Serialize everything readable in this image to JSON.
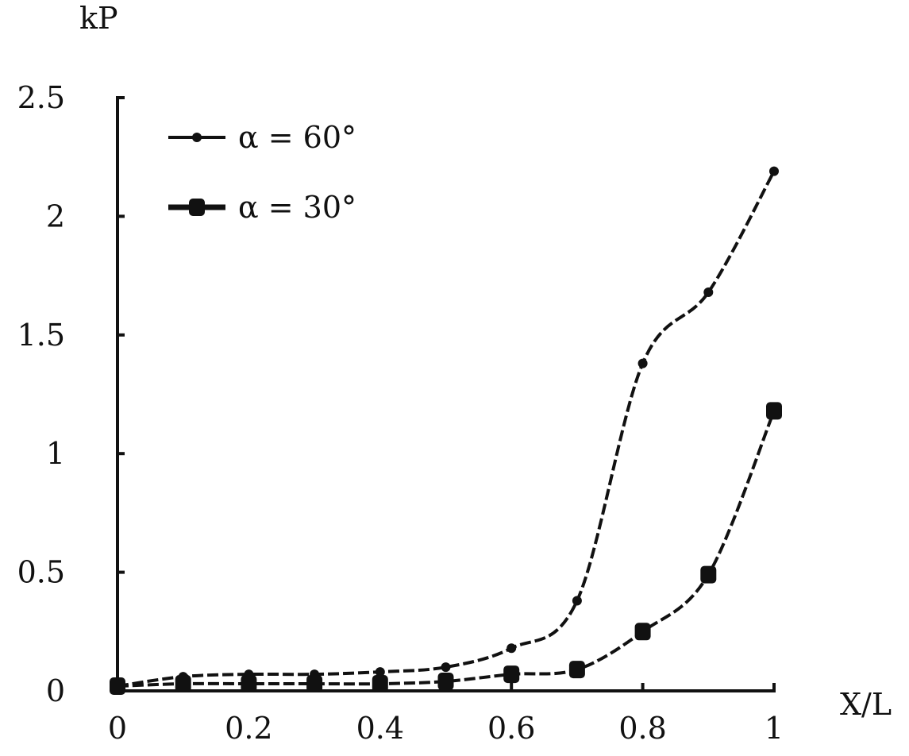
{
  "chart_data": {
    "type": "line",
    "title": "",
    "xlabel": "X/L",
    "ylabel": "kP",
    "xlim": [
      0,
      1
    ],
    "ylim": [
      0,
      2.5
    ],
    "x_ticks": [
      {
        "value": 0,
        "label": "0"
      },
      {
        "value": 0.2,
        "label": "0.2"
      },
      {
        "value": 0.4,
        "label": "0.4"
      },
      {
        "value": 0.6,
        "label": "0.6"
      },
      {
        "value": 0.8,
        "label": "0.8"
      },
      {
        "value": 1,
        "label": "1"
      }
    ],
    "y_ticks": [
      {
        "value": 0,
        "label": "0"
      },
      {
        "value": 0.5,
        "label": "0.5"
      },
      {
        "value": 1,
        "label": "1"
      },
      {
        "value": 1.5,
        "label": "1.5"
      },
      {
        "value": 2,
        "label": "2"
      },
      {
        "value": 2.5,
        "label": "2.5"
      }
    ],
    "grid": false,
    "legend_position": "top-left",
    "series": [
      {
        "name": "α = 60°",
        "color": "#111111",
        "marker": "small-circle",
        "line_style": "dashed",
        "x": [
          0,
          0.1,
          0.2,
          0.3,
          0.4,
          0.5,
          0.6,
          0.7,
          0.8,
          0.9,
          1.0
        ],
        "y": [
          0.02,
          0.06,
          0.07,
          0.07,
          0.08,
          0.1,
          0.18,
          0.38,
          1.38,
          1.68,
          2.19
        ]
      },
      {
        "name": "α = 30°",
        "color": "#111111",
        "marker": "large-square",
        "line_style": "dashed",
        "x": [
          0,
          0.1,
          0.2,
          0.3,
          0.4,
          0.5,
          0.6,
          0.7,
          0.8,
          0.9,
          1.0
        ],
        "y": [
          0.02,
          0.03,
          0.03,
          0.03,
          0.03,
          0.04,
          0.07,
          0.09,
          0.25,
          0.49,
          1.18
        ]
      }
    ]
  }
}
